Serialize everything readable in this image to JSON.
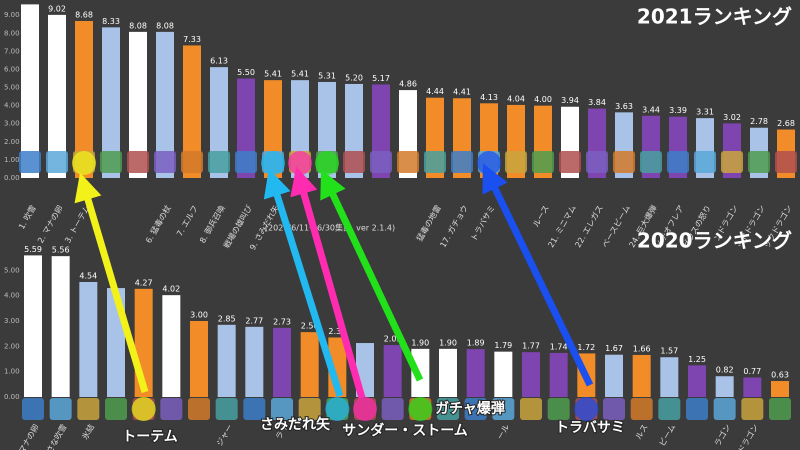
{
  "chart_data": [
    {
      "type": "bar",
      "title": "2021ランキング",
      "categories": [
        "1. 吹雪",
        "2. マナの卵",
        "3. トーテム",
        null,
        null,
        "6. 猛毒の杖",
        "7. エルフ",
        "8. 御兵召喚",
        "戦場の雄叫び",
        "9. さみだれ矢",
        null,
        null,
        null,
        null,
        null,
        "猛毒の地雷",
        "17. ガチョウ",
        "トラバサミ",
        null,
        "ルース",
        "21. ミニマム",
        "22. エレガス",
        "ベースビーム",
        "24. 巨大爆弾",
        "メテオフレア",
        "ゼウスの怒り",
        "ンドラゴン",
        "ッドドラゴン",
        "ックドラゴン"
      ],
      "values": [
        9.6,
        9.02,
        8.68,
        8.33,
        8.08,
        8.08,
        7.33,
        6.13,
        5.5,
        5.41,
        5.41,
        5.31,
        5.2,
        5.17,
        4.86,
        4.44,
        4.41,
        4.13,
        4.04,
        4.0,
        3.94,
        3.84,
        3.63,
        3.44,
        3.39,
        3.31,
        3.02,
        2.78,
        2.68
      ],
      "value_labels": [
        null,
        "9.02",
        "8.68",
        "8.33",
        "8.08",
        "8.08",
        "7.33",
        "6.13",
        "5.50",
        "5.41",
        "5.41",
        "5.31",
        "5.20",
        "5.17",
        "4.86",
        "4.44",
        "4.41",
        "4.13",
        "4.04",
        "4.00",
        "3.94",
        "3.84",
        "3.63",
        "3.44",
        "3.39",
        "3.31",
        "3.02",
        "2.78",
        "2.68"
      ],
      "colors": [
        "#ffffff",
        "#ffffff",
        "#f28c28",
        "#a9c3e8",
        "#ffffff",
        "#a9c3e8",
        "#f28c28",
        "#a9c3e8",
        "#7e44b0",
        "#f28c28",
        "#a9c3e8",
        "#a9c3e8",
        "#a9c3e8",
        "#7e44b0",
        "#ffffff",
        "#f28c28",
        "#f28c28",
        "#f28c28",
        "#f28c28",
        "#f28c28",
        "#ffffff",
        "#7e44b0",
        "#a9c3e8",
        "#7e44b0",
        "#7e44b0",
        "#a9c3e8",
        "#7e44b0",
        "#a9c3e8",
        "#f28c28"
      ],
      "ylim": [
        0,
        9.4
      ],
      "yticks": [
        {
          "value": 0,
          "label": "0.00"
        },
        {
          "value": 1,
          "label": "1.00"
        },
        {
          "value": 2,
          "label": "2.00"
        },
        {
          "value": 3,
          "label": "3.00"
        },
        {
          "value": 4,
          "label": "4.00"
        },
        {
          "value": 5,
          "label": "5.00"
        },
        {
          "value": 6,
          "label": "6.00"
        },
        {
          "value": 7,
          "label": "7.00"
        },
        {
          "value": 8,
          "label": "8.00"
        },
        {
          "value": 9,
          "label": "9.00"
        }
      ]
    },
    {
      "type": "bar",
      "title": "2020ランキング",
      "subtitle": "(2020/6/11～6/30集計, ver 2.1.4)",
      "categories": [
        "マナの卵",
        "小さな吹雪",
        "氷結",
        null,
        null,
        null,
        null,
        "ジャー",
        null,
        "ライ",
        null,
        null,
        null,
        null,
        null,
        null,
        null,
        "ール",
        null,
        null,
        null,
        null,
        "ルス",
        "ビーム",
        null,
        "ラゴン",
        "ドラゴン",
        null
      ],
      "values": [
        5.59,
        5.56,
        4.54,
        4.3,
        4.27,
        4.02,
        3.0,
        2.85,
        2.77,
        2.73,
        2.56,
        2.35,
        2.13,
        2.05,
        1.9,
        1.9,
        1.89,
        1.79,
        1.77,
        1.74,
        1.72,
        1.67,
        1.66,
        1.57,
        1.25,
        0.82,
        0.77,
        0.63
      ],
      "value_labels": [
        "5.59",
        "5.56",
        "4.54",
        null,
        "4.27",
        "4.02",
        "3.00",
        "2.85",
        "2.77",
        "2.73",
        "2.56",
        "2.35",
        null,
        "2.05",
        "1.90",
        "1.90",
        "1.89",
        "1.79",
        "1.77",
        "1.74",
        "1.72",
        "1.67",
        "1.66",
        "1.57",
        "1.25",
        "0.82",
        "0.77",
        "0.63"
      ],
      "colors": [
        "#ffffff",
        "#ffffff",
        "#a9c3e8",
        "#a9c3e8",
        "#f28c28",
        "#ffffff",
        "#f28c28",
        "#a9c3e8",
        "#a9c3e8",
        "#7e44b0",
        "#f28c28",
        "#f28c28",
        "#a9c3e8",
        "#7e44b0",
        "#ffffff",
        "#ffffff",
        "#7e44b0",
        "#ffffff",
        "#7e44b0",
        "#7e44b0",
        "#f28c28",
        "#a9c3e8",
        "#f28c28",
        "#a9c3e8",
        "#7e44b0",
        "#a9c3e8",
        "#7e44b0",
        "#f28c28"
      ],
      "ylim": [
        0,
        6
      ],
      "yticks": [
        {
          "value": 0,
          "label": "0.00"
        },
        {
          "value": 1,
          "label": "1.00"
        },
        {
          "value": 2,
          "label": "2.00"
        },
        {
          "value": 3,
          "label": "3.00"
        },
        {
          "value": 4,
          "label": "4.00"
        },
        {
          "value": 5,
          "label": "5.00"
        }
      ]
    }
  ],
  "annotations": [
    {
      "text": "トーテム",
      "color": "#f2f21a"
    },
    {
      "text": "さみだれ矢",
      "color": "#22b8f0"
    },
    {
      "text": "サンダー・ストーム",
      "color": "#ff2bb0"
    },
    {
      "text": "ガチャ爆弾",
      "color": "#22e01a"
    },
    {
      "text": "トラバサミ",
      "color": "#1a4ff0"
    }
  ]
}
